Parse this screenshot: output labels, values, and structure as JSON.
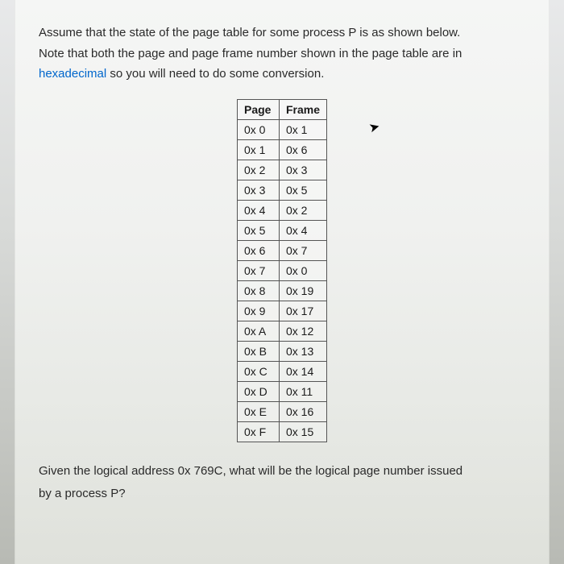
{
  "intro": {
    "line1": "Assume that the state of the page table for some process P is as shown below.",
    "line2_prefix": "Note that both the page and page frame number shown in the page table are in",
    "line3_link": "hexadecimal",
    "line3_suffix": " so you will need to do some conversion."
  },
  "table": {
    "headers": {
      "page": "Page",
      "frame": "Frame"
    },
    "rows": [
      {
        "page": "0x 0",
        "frame": "0x 1"
      },
      {
        "page": "0x 1",
        "frame": "0x 6"
      },
      {
        "page": "0x 2",
        "frame": "0x 3"
      },
      {
        "page": "0x 3",
        "frame": "0x 5"
      },
      {
        "page": "0x 4",
        "frame": "0x 2"
      },
      {
        "page": "0x 5",
        "frame": "0x 4"
      },
      {
        "page": "0x 6",
        "frame": "0x 7"
      },
      {
        "page": "0x 7",
        "frame": "0x 0"
      },
      {
        "page": "0x 8",
        "frame": "0x 19"
      },
      {
        "page": "0x 9",
        "frame": "0x 17"
      },
      {
        "page": "0x A",
        "frame": "0x 12"
      },
      {
        "page": "0x B",
        "frame": "0x 13"
      },
      {
        "page": "0x C",
        "frame": "0x 14"
      },
      {
        "page": "0x D",
        "frame": "0x 11"
      },
      {
        "page": "0x E",
        "frame": "0x 16"
      },
      {
        "page": "0x F",
        "frame": "0x 15"
      }
    ]
  },
  "question": {
    "line1": "Given the logical address 0x 769C, what will be the logical page number issued",
    "line2": "by a process P?"
  },
  "styling": {
    "link_color": "#0066cc",
    "text_color": "#2a2a2a",
    "border_color": "#555",
    "font_size_body": 15,
    "font_size_table": 14
  }
}
